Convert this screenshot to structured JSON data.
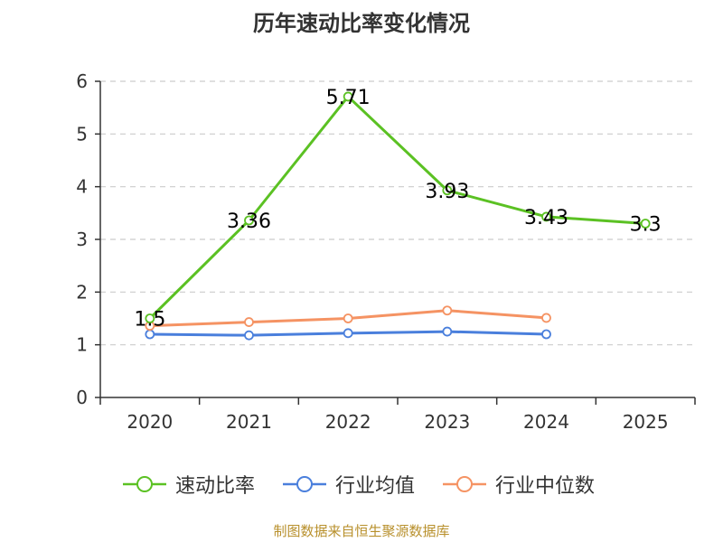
{
  "title": "历年速动比率变化情况",
  "source": "制图数据来自恒生聚源数据库",
  "colors": {
    "axis": "#333333",
    "grid": "#cccccc",
    "text": "#333333"
  },
  "chart_data": {
    "type": "line",
    "title": "历年速动比率变化情况",
    "categories": [
      "2020",
      "2021",
      "2022",
      "2023",
      "2024",
      "2025"
    ],
    "ylim": [
      0,
      6
    ],
    "yticks": [
      0,
      1,
      2,
      3,
      4,
      5,
      6
    ],
    "grid": "dashed horizontal",
    "legend_position": "bottom",
    "series": [
      {
        "name": "速动比率",
        "color": "#5bc123",
        "values": [
          1.5,
          3.36,
          5.71,
          3.93,
          3.43,
          3.3
        ],
        "labels": [
          "1.5",
          "3.36",
          "5.71",
          "3.93",
          "3.43",
          "3.3"
        ]
      },
      {
        "name": "行业均值",
        "color": "#4a7fdc",
        "values": [
          1.2,
          1.18,
          1.22,
          1.25,
          1.2,
          null
        ]
      },
      {
        "name": "行业中位数",
        "color": "#f59363",
        "values": [
          1.36,
          1.43,
          1.5,
          1.65,
          1.51,
          null
        ]
      }
    ]
  }
}
